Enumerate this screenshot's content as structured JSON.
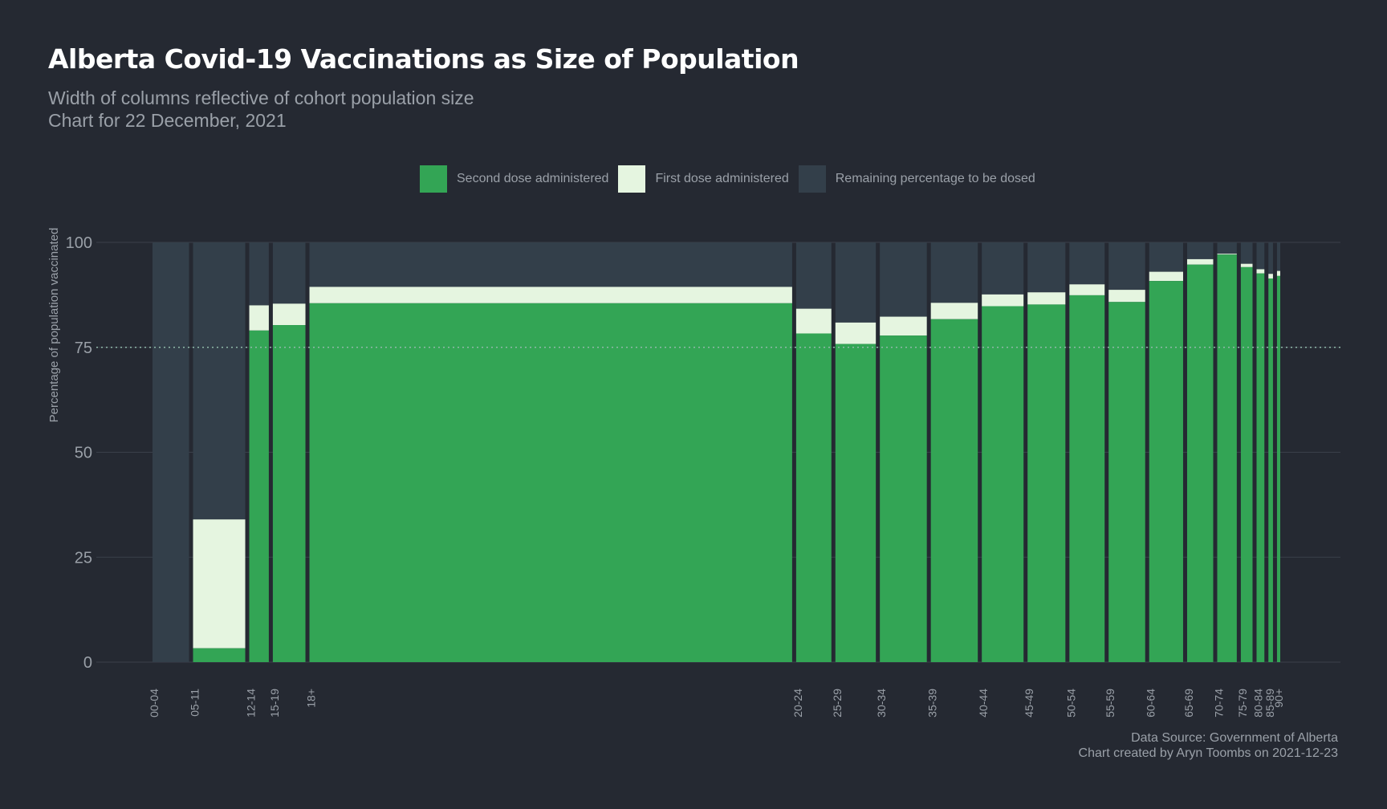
{
  "header": {
    "title": "Alberta Covid-19 Vaccinations as Size of Population",
    "subtitle_line1": "Width of columns reflective of cohort population size",
    "subtitle_line2": "Chart for 22 December, 2021"
  },
  "legend": {
    "items": [
      {
        "label": "Second dose administered",
        "color": "#33a555"
      },
      {
        "label": "First dose administered",
        "color": "#e5f5e0"
      },
      {
        "label": "Remaining percentage to be dosed",
        "color": "#333f4a"
      }
    ]
  },
  "caption": {
    "line1": "Data Source: Government of Alberta",
    "line2": "Chart created by Aryn Toombs on 2021-12-23"
  },
  "colors": {
    "background": "#252932",
    "second_dose": "#33a555",
    "first_dose": "#e5f5e0",
    "remaining": "#333f4a",
    "gridline": "#3a404a",
    "reference_line": "#8fb8a8",
    "tick_text": "#9aa0a8"
  },
  "chart_data": {
    "type": "bar",
    "ylabel": "Percentage of population vaccinated",
    "ylim": [
      0,
      100
    ],
    "yticks": [
      0,
      25,
      50,
      75,
      100
    ],
    "reference_line": 75,
    "legend_position": "top",
    "cohorts": [
      {
        "label": "00-04",
        "population": 0.28,
        "second": 0,
        "first": 0
      },
      {
        "label": "05-11",
        "population": 0.4,
        "second": 3.3,
        "first": 34.0
      },
      {
        "label": "12-14",
        "population": 0.15,
        "second": 79.0,
        "first": 85.0
      },
      {
        "label": "15-19",
        "population": 0.25,
        "second": 80.3,
        "first": 85.4
      },
      {
        "label": "18+",
        "population": 3.7,
        "second": 85.5,
        "first": 89.4
      },
      {
        "label": "20-24",
        "population": 0.27,
        "second": 78.3,
        "first": 84.2
      },
      {
        "label": "25-29",
        "population": 0.31,
        "second": 75.8,
        "first": 80.9
      },
      {
        "label": "30-34",
        "population": 0.36,
        "second": 77.8,
        "first": 82.3
      },
      {
        "label": "35-39",
        "population": 0.36,
        "second": 81.7,
        "first": 85.6
      },
      {
        "label": "40-44",
        "population": 0.32,
        "second": 84.8,
        "first": 87.6
      },
      {
        "label": "45-49",
        "population": 0.29,
        "second": 85.2,
        "first": 88.1
      },
      {
        "label": "50-54",
        "population": 0.27,
        "second": 87.4,
        "first": 90.0
      },
      {
        "label": "55-59",
        "population": 0.28,
        "second": 85.8,
        "first": 88.7
      },
      {
        "label": "60-64",
        "population": 0.26,
        "second": 90.8,
        "first": 93.0
      },
      {
        "label": "65-69",
        "population": 0.2,
        "second": 94.7,
        "first": 96.0
      },
      {
        "label": "70-74",
        "population": 0.15,
        "second": 97.1,
        "first": 97.3
      },
      {
        "label": "75-79",
        "population": 0.09,
        "second": 94.1,
        "first": 94.9
      },
      {
        "label": "80-84",
        "population": 0.06,
        "second": 92.6,
        "first": 93.6
      },
      {
        "label": "85-89",
        "population": 0.035,
        "second": 91.4,
        "first": 92.5
      },
      {
        "label": "90+",
        "population": 0.025,
        "second": 92.0,
        "first": 93.2
      }
    ]
  }
}
